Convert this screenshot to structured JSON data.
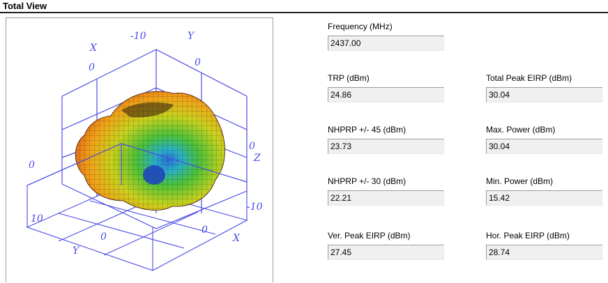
{
  "panel": {
    "title": "Total View"
  },
  "plot": {
    "axis_labels": {
      "x_top": "X",
      "y_top": "Y",
      "z_right": "Z",
      "x_bottom": "X",
      "y_bottom": "Y"
    },
    "tick_labels": {
      "top_center": "-10",
      "top_left_0": "0",
      "top_right_0": "0",
      "left_0": "0",
      "right_0": "0",
      "bottom_left_10": "10",
      "bottom_center_0": "0",
      "bottom_right_0": "0",
      "bottom_right_10": "-10"
    },
    "colors": {
      "axis": "#4a4ae8",
      "surface_warm": "#e23a17",
      "surface_mid": "#f0c419",
      "surface_cool": "#2a9fd6"
    }
  },
  "fields": {
    "frequency": {
      "label": "Frequency (MHz)",
      "value": "2437.00"
    },
    "trp": {
      "label": "TRP (dBm)",
      "value": "24.86"
    },
    "total_peak_eirp": {
      "label": "Total Peak EIRP (dBm)",
      "value": "30.04"
    },
    "nhprp45": {
      "label": "NHPRP +/- 45 (dBm)",
      "value": "23.73"
    },
    "max_power": {
      "label": "Max. Power (dBm)",
      "value": "30.04"
    },
    "nhprp30": {
      "label": "NHPRP +/- 30 (dBm)",
      "value": "22.21"
    },
    "min_power": {
      "label": "Min. Power (dBm)",
      "value": "15.42"
    },
    "ver_peak_eirp": {
      "label": "Ver. Peak EIRP (dBm)",
      "value": "27.45"
    },
    "hor_peak_eirp": {
      "label": "Hor. Peak EIRP (dBm)",
      "value": "28.74"
    }
  }
}
